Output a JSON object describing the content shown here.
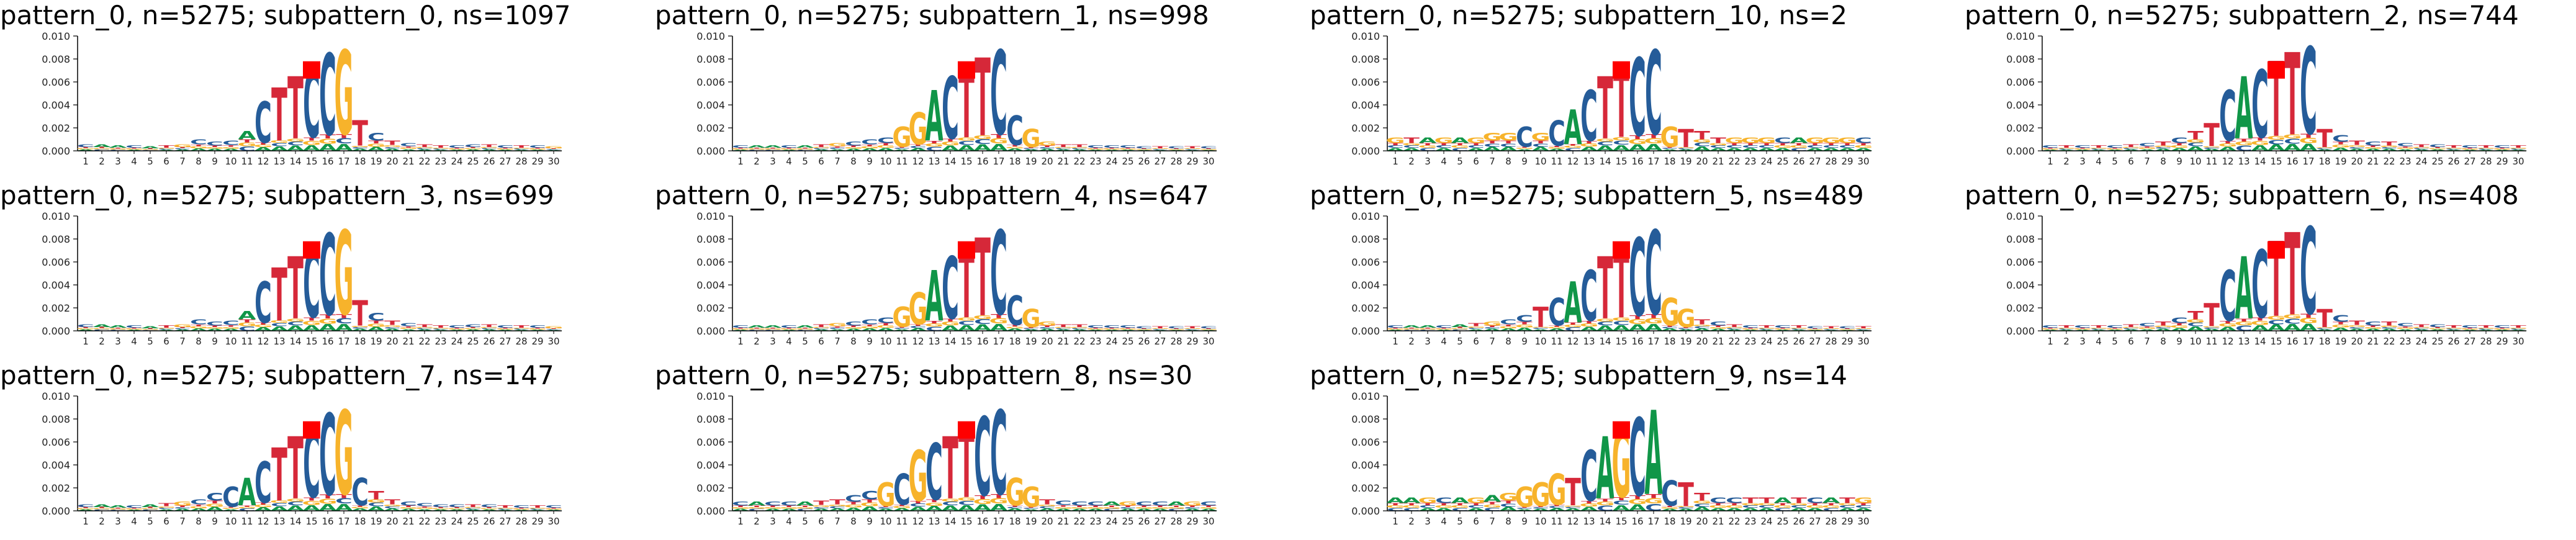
{
  "figure": {
    "colors": {
      "A": "#109648",
      "C": "#255c99",
      "G": "#f7b32b",
      "T": "#d62839",
      "H": "#ff0000",
      "background": "#ffffff"
    }
  },
  "chart_data": [
    {
      "type": "logo",
      "title": "pattern_0, n=5275; subpattern_0, ns=1097",
      "positions": [
        1,
        2,
        3,
        4,
        5,
        6,
        7,
        8,
        9,
        10,
        11,
        12,
        13,
        14,
        15,
        16,
        17,
        18,
        19,
        20,
        21,
        22,
        23,
        24,
        25,
        26,
        27,
        28,
        29,
        30
      ],
      "yticks": [
        "0.000",
        "0.002",
        "0.004",
        "0.006",
        "0.008",
        "0.010"
      ],
      "ylim": [
        0,
        0.01
      ],
      "highlight_position": 15,
      "highlight_value": 0.0078,
      "motif": {
        "max_height": 0.0092,
        "pattern": "CAACATGCCCACTTCCGTCTCTTCCTCTCG",
        "heights": [
          0.0006,
          0.0006,
          0.0005,
          0.0005,
          0.0004,
          0.0005,
          0.0006,
          0.001,
          0.0008,
          0.0009,
          0.0018,
          0.0045,
          0.0058,
          0.0068,
          0.0075,
          0.0089,
          0.0092,
          0.0028,
          0.0016,
          0.0009,
          0.0007,
          0.0006,
          0.0005,
          0.0005,
          0.0006,
          0.0006,
          0.0005,
          0.0005,
          0.0005,
          0.0004
        ]
      }
    },
    {
      "type": "logo",
      "title": "pattern_0, n=5275; subpattern_1, ns=998",
      "positions": [
        1,
        2,
        3,
        4,
        5,
        6,
        7,
        8,
        9,
        10,
        11,
        12,
        13,
        14,
        15,
        16,
        17,
        18,
        19,
        20,
        21,
        22,
        23,
        24,
        25,
        26,
        27,
        28,
        29,
        30
      ],
      "yticks": [
        "0.000",
        "0.002",
        "0.004",
        "0.006",
        "0.008",
        "0.010"
      ],
      "ylim": [
        0,
        0.01
      ],
      "highlight_position": 15,
      "highlight_value": 0.0078,
      "motif": {
        "max_height": 0.0092,
        "pattern": "CAACATGCCCGGACTTCCGGTTCCCCTCTC",
        "heights": [
          0.0005,
          0.0005,
          0.0005,
          0.0005,
          0.0005,
          0.0006,
          0.0007,
          0.0008,
          0.001,
          0.0012,
          0.0022,
          0.0035,
          0.0055,
          0.0068,
          0.0074,
          0.0085,
          0.0092,
          0.0032,
          0.002,
          0.0008,
          0.0006,
          0.0006,
          0.0005,
          0.0005,
          0.0005,
          0.0004,
          0.0004,
          0.0004,
          0.0004,
          0.0004
        ]
      }
    },
    {
      "type": "logo",
      "title": "pattern_0, n=5275; subpattern_10, ns=2",
      "positions": [
        1,
        2,
        3,
        4,
        5,
        6,
        7,
        8,
        9,
        10,
        11,
        12,
        13,
        14,
        15,
        16,
        17,
        18,
        19,
        20,
        21,
        22,
        23,
        24,
        25,
        26,
        27,
        28,
        29,
        30
      ],
      "yticks": [
        "0.000",
        "0.002",
        "0.004",
        "0.006",
        "0.008",
        "0.010"
      ],
      "ylim": [
        0,
        0.01
      ],
      "highlight_position": 15,
      "highlight_value": 0.0078,
      "motif": {
        "max_height": 0.0092,
        "pattern": "GTAGAGGGCGCACTTCCGTTTGGGCAGGGC",
        "heights": [
          0.0012,
          0.0012,
          0.0012,
          0.0012,
          0.0012,
          0.0012,
          0.0016,
          0.0016,
          0.0022,
          0.0016,
          0.0028,
          0.0038,
          0.0055,
          0.0068,
          0.0076,
          0.0085,
          0.0092,
          0.0022,
          0.002,
          0.0018,
          0.0012,
          0.0012,
          0.0012,
          0.0012,
          0.0012,
          0.0012,
          0.0012,
          0.0012,
          0.0012,
          0.0012
        ]
      }
    },
    {
      "type": "logo",
      "title": "pattern_0, n=5275; subpattern_2, ns=744",
      "positions": [
        1,
        2,
        3,
        4,
        5,
        6,
        7,
        8,
        9,
        10,
        11,
        12,
        13,
        14,
        15,
        16,
        17,
        18,
        19,
        20,
        21,
        22,
        23,
        24,
        25,
        26,
        27,
        28,
        29,
        30
      ],
      "yticks": [
        "0.000",
        "0.002",
        "0.004",
        "0.006",
        "0.008",
        "0.010"
      ],
      "ylim": [
        0,
        0.01
      ],
      "highlight_position": 15,
      "highlight_value": 0.0078,
      "motif": {
        "max_height": 0.0095,
        "pattern": "CTCTCTCTCTTCACTTCTCTCTCTCTCTCT",
        "heights": [
          0.0005,
          0.0005,
          0.0005,
          0.0005,
          0.0005,
          0.0006,
          0.0007,
          0.0008,
          0.0012,
          0.0018,
          0.0025,
          0.0055,
          0.0068,
          0.0074,
          0.0082,
          0.009,
          0.0095,
          0.002,
          0.0014,
          0.0009,
          0.0008,
          0.0008,
          0.0007,
          0.0006,
          0.0006,
          0.0005,
          0.0005,
          0.0005,
          0.0005,
          0.0005
        ]
      }
    },
    {
      "type": "logo",
      "title": "pattern_0, n=5275; subpattern_3, ns=699",
      "positions": [
        1,
        2,
        3,
        4,
        5,
        6,
        7,
        8,
        9,
        10,
        11,
        12,
        13,
        14,
        15,
        16,
        17,
        18,
        19,
        20,
        21,
        22,
        23,
        24,
        25,
        26,
        27,
        28,
        29,
        30
      ],
      "yticks": [
        "0.000",
        "0.002",
        "0.004",
        "0.006",
        "0.008",
        "0.010"
      ],
      "ylim": [
        0,
        0.01
      ],
      "highlight_position": 15,
      "highlight_value": 0.0078,
      "motif": {
        "max_height": 0.0092,
        "pattern": "CAACATGCCCACTTCCGTCTCTTCCTCTCG",
        "heights": [
          0.0006,
          0.0006,
          0.0005,
          0.0005,
          0.0004,
          0.0005,
          0.0006,
          0.001,
          0.0008,
          0.0009,
          0.0018,
          0.0045,
          0.0058,
          0.0068,
          0.0075,
          0.0089,
          0.0092,
          0.0028,
          0.0016,
          0.0009,
          0.0007,
          0.0006,
          0.0005,
          0.0005,
          0.0006,
          0.0006,
          0.0005,
          0.0005,
          0.0005,
          0.0004
        ]
      }
    },
    {
      "type": "logo",
      "title": "pattern_0, n=5275; subpattern_4, ns=647",
      "positions": [
        1,
        2,
        3,
        4,
        5,
        6,
        7,
        8,
        9,
        10,
        11,
        12,
        13,
        14,
        15,
        16,
        17,
        18,
        19,
        20,
        21,
        22,
        23,
        24,
        25,
        26,
        27,
        28,
        29,
        30
      ],
      "yticks": [
        "0.000",
        "0.002",
        "0.004",
        "0.006",
        "0.008",
        "0.010"
      ],
      "ylim": [
        0,
        0.01
      ],
      "highlight_position": 15,
      "highlight_value": 0.0078,
      "motif": {
        "max_height": 0.0092,
        "pattern": "CAACATGCCCGGACTTCCGGTTCCCCTCTC",
        "heights": [
          0.0005,
          0.0005,
          0.0005,
          0.0005,
          0.0005,
          0.0006,
          0.0007,
          0.0008,
          0.001,
          0.0012,
          0.0022,
          0.0035,
          0.0055,
          0.0068,
          0.0074,
          0.0085,
          0.0092,
          0.0032,
          0.002,
          0.0008,
          0.0006,
          0.0006,
          0.0005,
          0.0005,
          0.0005,
          0.0004,
          0.0004,
          0.0004,
          0.0004,
          0.0004
        ]
      }
    },
    {
      "type": "logo",
      "title": "pattern_0, n=5275; subpattern_5, ns=489",
      "positions": [
        1,
        2,
        3,
        4,
        5,
        6,
        7,
        8,
        9,
        10,
        11,
        12,
        13,
        14,
        15,
        16,
        17,
        18,
        19,
        20,
        21,
        22,
        23,
        24,
        25,
        26,
        27,
        28,
        29,
        30
      ],
      "yticks": [
        "0.000",
        "0.002",
        "0.004",
        "0.006",
        "0.008",
        "0.010"
      ],
      "ylim": [
        0,
        0.01
      ],
      "highlight_position": 15,
      "highlight_value": 0.0078,
      "motif": {
        "max_height": 0.0092,
        "pattern": "CAACATGCCTCACTTCCGGTCTCTCTCTCT",
        "heights": [
          0.0005,
          0.0005,
          0.0005,
          0.0005,
          0.0006,
          0.0007,
          0.0008,
          0.001,
          0.0014,
          0.0022,
          0.003,
          0.0045,
          0.0055,
          0.0068,
          0.0074,
          0.0085,
          0.0092,
          0.003,
          0.002,
          0.001,
          0.0008,
          0.0006,
          0.0005,
          0.0005,
          0.0005,
          0.0005,
          0.0004,
          0.0004,
          0.0004,
          0.0004
        ]
      }
    },
    {
      "type": "logo",
      "title": "pattern_0, n=5275; subpattern_6, ns=408",
      "positions": [
        1,
        2,
        3,
        4,
        5,
        6,
        7,
        8,
        9,
        10,
        11,
        12,
        13,
        14,
        15,
        16,
        17,
        18,
        19,
        20,
        21,
        22,
        23,
        24,
        25,
        26,
        27,
        28,
        29,
        30
      ],
      "yticks": [
        "0.000",
        "0.002",
        "0.004",
        "0.006",
        "0.008",
        "0.010"
      ],
      "ylim": [
        0,
        0.01
      ],
      "highlight_position": 15,
      "highlight_value": 0.0078,
      "motif": {
        "max_height": 0.0095,
        "pattern": "CTCTCTCTCTTCACTTCTCTCTCTCTCTCT",
        "heights": [
          0.0005,
          0.0005,
          0.0005,
          0.0005,
          0.0005,
          0.0006,
          0.0007,
          0.0008,
          0.0012,
          0.0018,
          0.0025,
          0.0055,
          0.0068,
          0.0074,
          0.0082,
          0.009,
          0.0095,
          0.002,
          0.0014,
          0.0009,
          0.0008,
          0.0008,
          0.0007,
          0.0006,
          0.0006,
          0.0005,
          0.0005,
          0.0005,
          0.0005,
          0.0005
        ]
      }
    },
    {
      "type": "logo",
      "title": "pattern_0, n=5275; subpattern_7, ns=147",
      "positions": [
        1,
        2,
        3,
        4,
        5,
        6,
        7,
        8,
        9,
        10,
        11,
        12,
        13,
        14,
        15,
        16,
        17,
        18,
        19,
        20,
        21,
        22,
        23,
        24,
        25,
        26,
        27,
        28,
        29,
        30
      ],
      "yticks": [
        "0.000",
        "0.002",
        "0.004",
        "0.006",
        "0.008",
        "0.010"
      ],
      "ylim": [
        0,
        0.01
      ],
      "highlight_position": 15,
      "highlight_value": 0.0078,
      "motif": {
        "max_height": 0.0092,
        "pattern": "CAACATGCCCACTTCCGCTTCCCCTCTCTC",
        "heights": [
          0.0006,
          0.0006,
          0.0005,
          0.0005,
          0.0006,
          0.0007,
          0.0008,
          0.001,
          0.0016,
          0.0022,
          0.003,
          0.0045,
          0.0058,
          0.0068,
          0.0075,
          0.0089,
          0.0092,
          0.003,
          0.0018,
          0.001,
          0.0008,
          0.0007,
          0.0006,
          0.0006,
          0.0006,
          0.0006,
          0.0005,
          0.0005,
          0.0005,
          0.0005
        ]
      }
    },
    {
      "type": "logo",
      "title": "pattern_0, n=5275; subpattern_8, ns=30",
      "positions": [
        1,
        2,
        3,
        4,
        5,
        6,
        7,
        8,
        9,
        10,
        11,
        12,
        13,
        14,
        15,
        16,
        17,
        18,
        19,
        20,
        21,
        22,
        23,
        24,
        25,
        26,
        27,
        28,
        29,
        30
      ],
      "yticks": [
        "0.000",
        "0.002",
        "0.004",
        "0.006",
        "0.008",
        "0.010"
      ],
      "ylim": [
        0,
        0.01
      ],
      "highlight_position": 15,
      "highlight_value": 0.0078,
      "motif": {
        "max_height": 0.0092,
        "pattern": "CACCATTCCGCGCTTCCGGTCCCAGCCAGC",
        "heights": [
          0.0008,
          0.0008,
          0.0008,
          0.0008,
          0.0008,
          0.0009,
          0.001,
          0.0014,
          0.0018,
          0.0026,
          0.0034,
          0.0055,
          0.0062,
          0.0068,
          0.0075,
          0.0086,
          0.0092,
          0.003,
          0.0022,
          0.001,
          0.0009,
          0.0008,
          0.0008,
          0.0008,
          0.0008,
          0.0008,
          0.0008,
          0.0008,
          0.0008,
          0.0008
        ]
      }
    },
    {
      "type": "logo",
      "title": "pattern_0, n=5275; subpattern_9, ns=14",
      "positions": [
        1,
        2,
        3,
        4,
        5,
        6,
        7,
        8,
        9,
        10,
        11,
        12,
        13,
        14,
        15,
        16,
        17,
        18,
        19,
        20,
        21,
        22,
        23,
        24,
        25,
        26,
        27,
        28,
        29,
        30
      ],
      "yticks": [
        "0.000",
        "0.002",
        "0.004",
        "0.006",
        "0.008",
        "0.010"
      ],
      "ylim": [
        0,
        0.01
      ],
      "highlight_position": 15,
      "highlight_value": 0.0078,
      "motif": {
        "max_height": 0.0092,
        "pattern": "AAGCAGAGGGGTCAGCACTTCCTTATCATG",
        "heights": [
          0.0012,
          0.0012,
          0.0012,
          0.0012,
          0.0012,
          0.0012,
          0.0014,
          0.0016,
          0.0022,
          0.0026,
          0.0034,
          0.003,
          0.0055,
          0.0068,
          0.0076,
          0.0085,
          0.0092,
          0.0028,
          0.0026,
          0.0016,
          0.0012,
          0.0012,
          0.0012,
          0.0012,
          0.0012,
          0.0012,
          0.0012,
          0.0012,
          0.0012,
          0.0012
        ]
      }
    }
  ]
}
